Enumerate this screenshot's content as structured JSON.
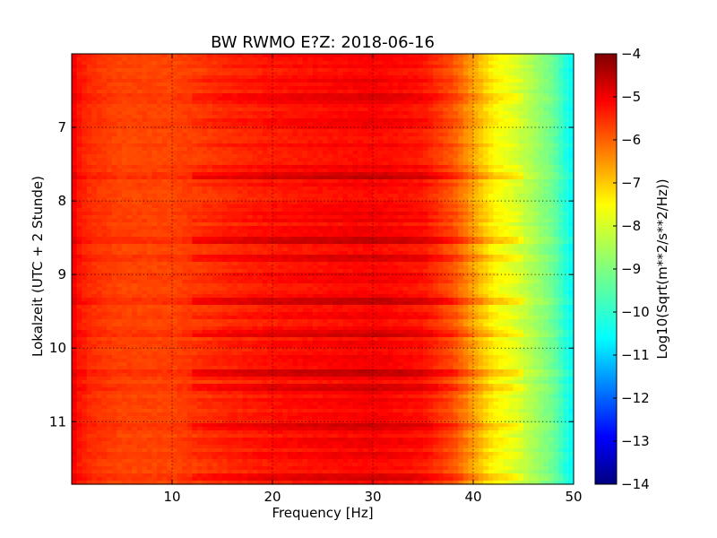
{
  "chart_data": {
    "type": "heatmap",
    "title": "BW RWMO E?Z: 2018-06-16",
    "xlabel": "Frequency [Hz]",
    "ylabel": "Lokalzeit (UTC + 2 Stunde)",
    "xlim": [
      0,
      50
    ],
    "ylim": [
      11.85,
      6.0
    ],
    "x_ticks": [
      10,
      20,
      30,
      40,
      50
    ],
    "y_ticks": [
      7,
      8,
      9,
      10,
      11
    ],
    "grid": true,
    "colormap": "jet",
    "colorbar": {
      "label": "Log10(Sqrt(m**2/s**2/Hz))",
      "range": [
        -14,
        -4
      ],
      "ticks": [
        -4,
        -5,
        -6,
        -7,
        -8,
        -9,
        -10,
        -11,
        -12,
        -13,
        -14
      ]
    },
    "value_profile_by_frequency": {
      "frequency_hz": [
        0,
        0.5,
        2,
        5,
        10,
        15,
        20,
        25,
        30,
        35,
        38,
        40,
        42,
        44,
        46,
        48,
        49,
        50
      ],
      "log10_amplitude": [
        -5.0,
        -5.4,
        -5.7,
        -5.9,
        -5.9,
        -5.6,
        -5.4,
        -5.3,
        -5.2,
        -5.4,
        -6.0,
        -6.8,
        -7.6,
        -8.0,
        -8.6,
        -9.2,
        -9.8,
        -10.3
      ]
    },
    "strong_rows_local_time": [
      6.6,
      7.65,
      8.55,
      8.8,
      9.35,
      9.8,
      10.35,
      10.55,
      11.05,
      11.75
    ]
  }
}
